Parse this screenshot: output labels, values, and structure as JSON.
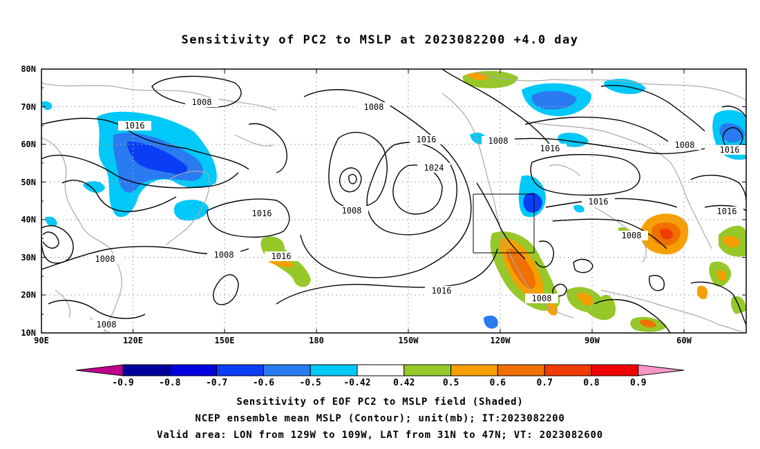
{
  "title": "Sensitivity of PC2 to MSLP at 2023082200 +4.0 day",
  "map": {
    "lat_labels": [
      "80N",
      "70N",
      "60N",
      "50N",
      "40N",
      "30N",
      "20N",
      "10N"
    ],
    "lon_labels": [
      "90E",
      "120E",
      "150E",
      "180",
      "150W",
      "120W",
      "90W",
      "60W"
    ],
    "contour_labels": [
      "1008",
      "1016",
      "1008",
      "1016",
      "1008",
      "1024",
      "1008",
      "1016",
      "1016",
      "1016",
      "1008",
      "1016",
      "1008",
      "1016",
      "1008",
      "1008",
      "1008",
      "1008",
      "1016"
    ],
    "valid_box": {
      "lon_west": "129W",
      "lon_east": "109W",
      "lat_south": "31N",
      "lat_north": "47N"
    }
  },
  "colorbar": {
    "labels": [
      "-0.9",
      "-0.8",
      "-0.7",
      "-0.6",
      "-0.5",
      "-0.42",
      "0.42",
      "0.5",
      "0.6",
      "0.7",
      "0.8",
      "0.9"
    ],
    "colors": [
      "#c0008c",
      "#00009c",
      "#0000e0",
      "#0a3ef5",
      "#2a7af0",
      "#00c8f8",
      "#ffffff",
      "#96c82a",
      "#f5a000",
      "#f07000",
      "#f03c00",
      "#f00000",
      "#f896c8"
    ]
  },
  "footer": {
    "line1": "Sensitivity of EOF PC2 to MSLP field (Shaded)",
    "line2": "NCEP ensemble mean MSLP (Contour); unit(mb); IT:2023082200",
    "line3": "Valid area: LON from 129W to 109W, LAT from 31N to 47N; VT: 2023082600"
  }
}
